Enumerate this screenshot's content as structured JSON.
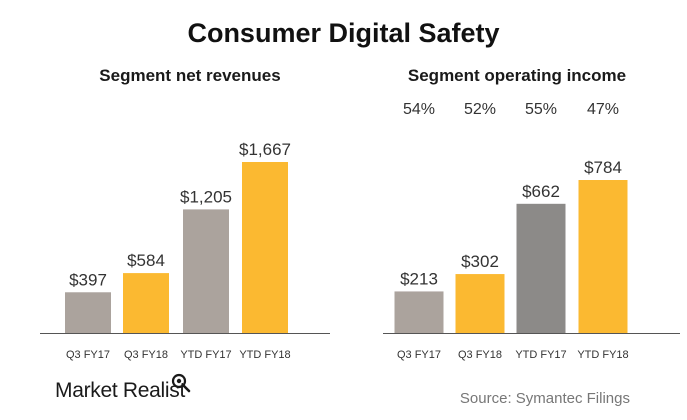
{
  "title": "Consumer Digital Safety",
  "brand": "Market Realist",
  "source": "Source:  Symantec Filings",
  "colors": {
    "gray": "#aba39d",
    "gray_dark": "#8c8a88",
    "yellow": "#fbb931",
    "axis": "#555555",
    "text": "#333333"
  },
  "chart_data": [
    {
      "type": "bar",
      "title": "Segment net revenues",
      "categories": [
        "Q3 FY17",
        "Q3 FY18",
        "YTD FY17",
        "YTD FY18"
      ],
      "values": [
        397,
        584,
        1205,
        1667
      ],
      "data_labels": [
        "$397",
        "$584",
        "$1,205",
        "$1,667"
      ],
      "bar_colors": [
        "gray",
        "yellow",
        "gray",
        "yellow"
      ],
      "ylim": [
        0,
        1667
      ]
    },
    {
      "type": "bar",
      "title": "Segment operating income",
      "categories": [
        "Q3 FY17",
        "Q3 FY18",
        "YTD FY17",
        "YTD FY18"
      ],
      "values": [
        213,
        302,
        662,
        784
      ],
      "data_labels": [
        "$213",
        "$302",
        "$662",
        "$784"
      ],
      "margins": [
        "54%",
        "52%",
        "55%",
        "47%"
      ],
      "bar_colors": [
        "gray",
        "yellow",
        "gray_dark",
        "yellow"
      ],
      "ylim": [
        0,
        784
      ]
    }
  ]
}
